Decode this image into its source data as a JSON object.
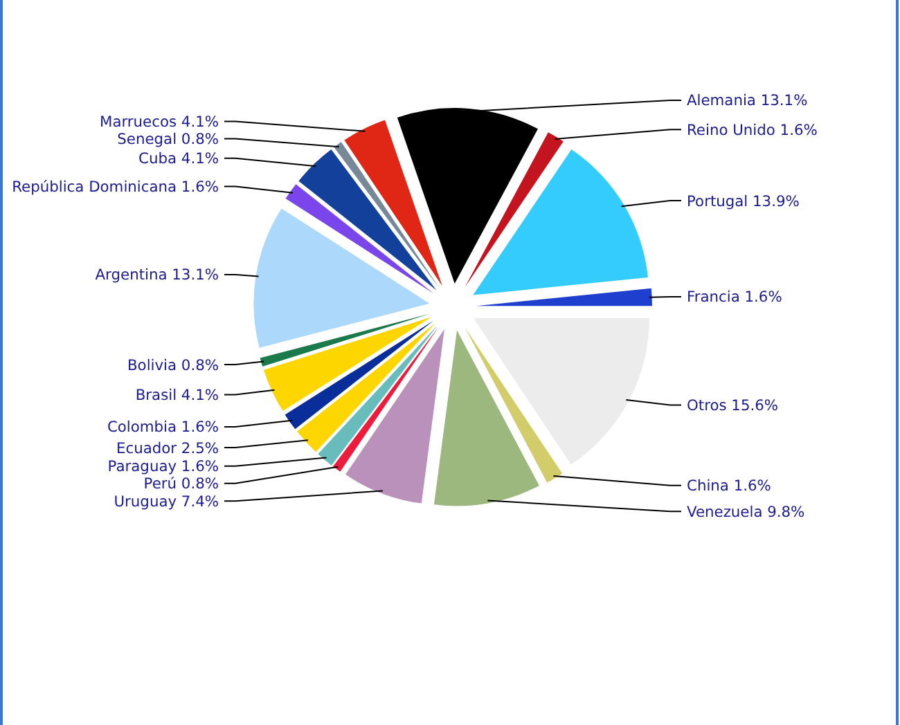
{
  "chart_data": {
    "type": "pie",
    "categories": [
      "Francia",
      "Portugal",
      "Reino Unido",
      "Alemania",
      "Marruecos",
      "Senegal",
      "Cuba",
      "República Dominicana",
      "Argentina",
      "Bolivia",
      "Brasil",
      "Colombia",
      "Ecuador",
      "Paraguay",
      "Perú",
      "Uruguay",
      "Venezuela",
      "China",
      "Otros"
    ],
    "values": [
      1.6,
      13.9,
      1.6,
      13.1,
      4.1,
      0.8,
      4.1,
      1.6,
      13.1,
      0.8,
      4.1,
      1.6,
      2.5,
      1.6,
      0.8,
      7.4,
      9.8,
      1.6,
      15.6
    ],
    "value_labels": [
      "1.6%",
      "13.9%",
      "1.6%",
      "13.1%",
      "4.1%",
      "0.8%",
      "4.1%",
      "1.6%",
      "13.1%",
      "0.8%",
      "4.1%",
      "1.6%",
      "2.5%",
      "1.6%",
      "0.8%",
      "7.4%",
      "9.8%",
      "1.6%",
      "15.6%"
    ],
    "colors": [
      "#1f3fcf",
      "#33ccfd",
      "#c4141f",
      "#000000",
      "#e02614",
      "#778899",
      "#12409a",
      "#7a45ea",
      "#acd8fb",
      "#1a7a4c",
      "#fdd600",
      "#0a2e99",
      "#fdd600",
      "#68bdbc",
      "#ee1c3c",
      "#b991bb",
      "#9cb87f",
      "#d3cc6b",
      "#ececec"
    ]
  }
}
